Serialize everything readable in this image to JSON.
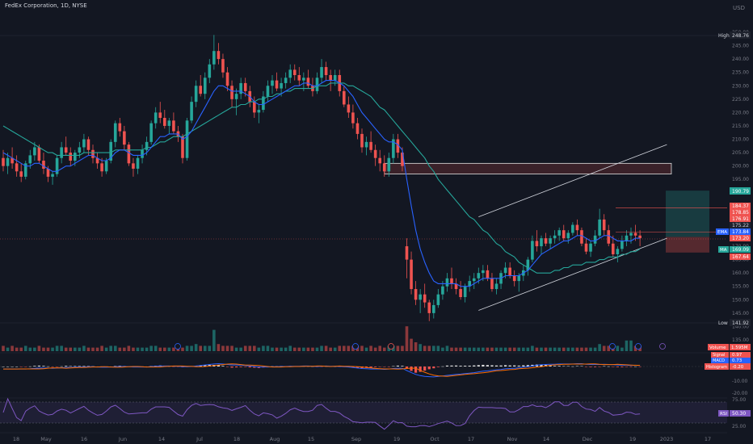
{
  "header": {
    "title": "FedEx Corporation, 1D, NYSE"
  },
  "colors": {
    "bg": "#131722",
    "up": "#26a69a",
    "down": "#ef5350",
    "ema": "#2962ff",
    "ma": "#26a69a",
    "axis": "#787b86",
    "grid": "#1f2330"
  },
  "price_axis": {
    "currency": "USD",
    "ticks": [
      "250.00",
      "245.00",
      "240.00",
      "235.00",
      "230.00",
      "225.00",
      "220.00",
      "215.00",
      "210.00",
      "205.00",
      "200.00",
      "195.00",
      "190.00",
      "185.00",
      "180.00",
      "175.00",
      "170.00",
      "165.00",
      "160.00",
      "155.00",
      "150.00",
      "145.00",
      "140.00",
      "135.00"
    ]
  },
  "time_axis": {
    "labels": [
      "18",
      "May",
      "16",
      "Jun",
      "14",
      "Jul",
      "18",
      "Aug",
      "15",
      "Sep",
      "19",
      "Oct",
      "17",
      "Nov",
      "14",
      "Dec",
      "19",
      "2023",
      "17"
    ]
  },
  "badges": {
    "high": {
      "label": "High",
      "value": "248.76"
    },
    "low": {
      "label": "Low",
      "value": "141.92"
    },
    "target": {
      "value": "190.79"
    },
    "p1": {
      "value": "184.37"
    },
    "p2": {
      "value": "178.85"
    },
    "p3": {
      "value": "176.91"
    },
    "p4": {
      "value": "175.22"
    },
    "ema": {
      "label": "EMA",
      "value": "173.84"
    },
    "last": {
      "value": "173.20"
    },
    "ma": {
      "label": "MA",
      "value": "169.09"
    },
    "stop": {
      "value": "167.64"
    }
  },
  "indicators": {
    "volume": {
      "label": "Volume",
      "value": "1.595M"
    },
    "macd_signal": {
      "label": "Signal",
      "value": "0.97"
    },
    "macd": {
      "label": "MACD",
      "value": "0.73"
    },
    "macd_hist": {
      "label": "Histogram",
      "value": "-0.20"
    },
    "macd_tick_neg10": "-10.00",
    "macd_tick_neg20": "-20.00",
    "rsi": {
      "label": "RSI",
      "value": "50.30"
    },
    "rsi_tick_75": "75.00",
    "rsi_tick_25": "25.00"
  },
  "chart_data": {
    "type": "candlestick",
    "title": "FedEx Corporation, 1D, NYSE",
    "y_range": [
      133,
      253
    ],
    "ohlc": [
      [
        203,
        206,
        198,
        200
      ],
      [
        200,
        205,
        197,
        203
      ],
      [
        203,
        207,
        199,
        201
      ],
      [
        201,
        204,
        196,
        198
      ],
      [
        198,
        201,
        194,
        196
      ],
      [
        196,
        202,
        195,
        201
      ],
      [
        201,
        206,
        199,
        204
      ],
      [
        204,
        209,
        202,
        207
      ],
      [
        207,
        208,
        201,
        202
      ],
      [
        202,
        205,
        197,
        199
      ],
      [
        199,
        200,
        194,
        196
      ],
      [
        196,
        198,
        193,
        197
      ],
      [
        197,
        204,
        196,
        203
      ],
      [
        203,
        209,
        201,
        207
      ],
      [
        207,
        211,
        204,
        205
      ],
      [
        205,
        207,
        200,
        202
      ],
      [
        202,
        206,
        200,
        205
      ],
      [
        205,
        209,
        203,
        207
      ],
      [
        207,
        212,
        205,
        210
      ],
      [
        210,
        211,
        204,
        206
      ],
      [
        206,
        208,
        201,
        203
      ],
      [
        203,
        205,
        199,
        201
      ],
      [
        201,
        203,
        196,
        198
      ],
      [
        198,
        203,
        197,
        202
      ],
      [
        202,
        210,
        201,
        209
      ],
      [
        209,
        217,
        207,
        216
      ],
      [
        216,
        218,
        211,
        213
      ],
      [
        213,
        215,
        206,
        208
      ],
      [
        208,
        209,
        200,
        201
      ],
      [
        201,
        203,
        196,
        199
      ],
      [
        199,
        204,
        197,
        203
      ],
      [
        203,
        208,
        201,
        206
      ],
      [
        206,
        211,
        204,
        209
      ],
      [
        209,
        217,
        208,
        216
      ],
      [
        216,
        222,
        214,
        220
      ],
      [
        220,
        224,
        216,
        218
      ],
      [
        218,
        221,
        214,
        215
      ],
      [
        215,
        218,
        212,
        217
      ],
      [
        217,
        220,
        212,
        213
      ],
      [
        213,
        215,
        209,
        211
      ],
      [
        211,
        212,
        201,
        203
      ],
      [
        203,
        218,
        202,
        217
      ],
      [
        217,
        226,
        216,
        224
      ],
      [
        224,
        232,
        222,
        230
      ],
      [
        230,
        234,
        226,
        227
      ],
      [
        227,
        235,
        225,
        233
      ],
      [
        233,
        240,
        231,
        238
      ],
      [
        238,
        249,
        236,
        243
      ],
      [
        243,
        246,
        238,
        240
      ],
      [
        240,
        242,
        233,
        235
      ],
      [
        235,
        237,
        228,
        230
      ],
      [
        230,
        232,
        222,
        225
      ],
      [
        225,
        229,
        219,
        227
      ],
      [
        227,
        233,
        225,
        231
      ],
      [
        231,
        233,
        226,
        228
      ],
      [
        228,
        230,
        222,
        224
      ],
      [
        224,
        226,
        218,
        220
      ],
      [
        220,
        223,
        216,
        221
      ],
      [
        221,
        228,
        220,
        226
      ],
      [
        226,
        232,
        224,
        230
      ],
      [
        230,
        234,
        227,
        232
      ],
      [
        232,
        235,
        228,
        229
      ],
      [
        229,
        233,
        226,
        231
      ],
      [
        231,
        235,
        229,
        233
      ],
      [
        233,
        238,
        231,
        236
      ],
      [
        236,
        238,
        232,
        234
      ],
      [
        234,
        237,
        230,
        232
      ],
      [
        232,
        235,
        228,
        233
      ],
      [
        233,
        236,
        229,
        230
      ],
      [
        230,
        233,
        226,
        228
      ],
      [
        228,
        235,
        227,
        233
      ],
      [
        233,
        240,
        231,
        237
      ],
      [
        237,
        239,
        232,
        234
      ],
      [
        234,
        236,
        228,
        232
      ],
      [
        232,
        236,
        230,
        234
      ],
      [
        234,
        236,
        226,
        228
      ],
      [
        228,
        230,
        222,
        223
      ],
      [
        223,
        226,
        218,
        220
      ],
      [
        220,
        223,
        214,
        216
      ],
      [
        216,
        218,
        210,
        212
      ],
      [
        212,
        214,
        205,
        207
      ],
      [
        207,
        211,
        204,
        209
      ],
      [
        209,
        213,
        205,
        206
      ],
      [
        206,
        208,
        200,
        203
      ],
      [
        203,
        206,
        198,
        201
      ],
      [
        201,
        204,
        196,
        198
      ],
      [
        198,
        205,
        196,
        203
      ],
      [
        203,
        212,
        201,
        210
      ],
      [
        210,
        212,
        203,
        205
      ],
      [
        205,
        207,
        198,
        200
      ],
      [
        170,
        173,
        158,
        165
      ],
      [
        165,
        168,
        152,
        154
      ],
      [
        154,
        157,
        148,
        150
      ],
      [
        150,
        154,
        145,
        152
      ],
      [
        152,
        156,
        147,
        149
      ],
      [
        149,
        150,
        142,
        145
      ],
      [
        145,
        150,
        143,
        148
      ],
      [
        148,
        154,
        147,
        152
      ],
      [
        152,
        157,
        150,
        155
      ],
      [
        155,
        160,
        153,
        158
      ],
      [
        158,
        162,
        154,
        156
      ],
      [
        156,
        158,
        152,
        154
      ],
      [
        154,
        157,
        150,
        151
      ],
      [
        151,
        156,
        149,
        155
      ],
      [
        155,
        159,
        153,
        157
      ],
      [
        157,
        160,
        154,
        158
      ],
      [
        158,
        162,
        156,
        160
      ],
      [
        160,
        163,
        157,
        161
      ],
      [
        161,
        163,
        157,
        158
      ],
      [
        158,
        160,
        153,
        154
      ],
      [
        154,
        158,
        152,
        156
      ],
      [
        156,
        161,
        154,
        160
      ],
      [
        160,
        164,
        158,
        162
      ],
      [
        162,
        164,
        158,
        159
      ],
      [
        159,
        161,
        155,
        157
      ],
      [
        157,
        160,
        153,
        159
      ],
      [
        159,
        163,
        157,
        161
      ],
      [
        161,
        166,
        159,
        165
      ],
      [
        165,
        174,
        164,
        172
      ],
      [
        172,
        176,
        168,
        170
      ],
      [
        170,
        174,
        167,
        173
      ],
      [
        173,
        175,
        170,
        171
      ],
      [
        171,
        174,
        169,
        173
      ],
      [
        173,
        176,
        171,
        174
      ],
      [
        174,
        177,
        172,
        176
      ],
      [
        176,
        178,
        172,
        173
      ],
      [
        173,
        176,
        171,
        175
      ],
      [
        175,
        179,
        174,
        178
      ],
      [
        178,
        180,
        174,
        176
      ],
      [
        176,
        177,
        170,
        171
      ],
      [
        171,
        173,
        167,
        168
      ],
      [
        168,
        172,
        166,
        171
      ],
      [
        171,
        176,
        170,
        174
      ],
      [
        174,
        184,
        173,
        180
      ],
      [
        180,
        182,
        174,
        176
      ],
      [
        176,
        178,
        170,
        171
      ],
      [
        171,
        174,
        166,
        167
      ],
      [
        167,
        170,
        164,
        169
      ],
      [
        169,
        174,
        168,
        172
      ],
      [
        172,
        176,
        170,
        174
      ],
      [
        174,
        177,
        171,
        175
      ],
      [
        175,
        178,
        172,
        174
      ],
      [
        174,
        176,
        170,
        173
      ]
    ],
    "ema": [
      205,
      204,
      203,
      202,
      201,
      200,
      200,
      201,
      201,
      200,
      199,
      198,
      198,
      199,
      200,
      200,
      201,
      202,
      203,
      204,
      204,
      203,
      202,
      202,
      203,
      205,
      206,
      206,
      205,
      204,
      204,
      204,
      205,
      207,
      209,
      211,
      211,
      212,
      212,
      212,
      210,
      211,
      213,
      216,
      219,
      222,
      225,
      228,
      230,
      230,
      229,
      228,
      228,
      228,
      227,
      226,
      224,
      223,
      223,
      224,
      225,
      226,
      227,
      228,
      229,
      230,
      230,
      231,
      231,
      230,
      230,
      231,
      232,
      232,
      232,
      231,
      230,
      228,
      226,
      223,
      220,
      218,
      216,
      214,
      212,
      210,
      209,
      209,
      208,
      206,
      195,
      185,
      176,
      169,
      164,
      160,
      157,
      156,
      156,
      156,
      156,
      156,
      155,
      155,
      155,
      156,
      157,
      158,
      158,
      158,
      158,
      158,
      159,
      159,
      159,
      159,
      160,
      161,
      163,
      165,
      167,
      168,
      169,
      170,
      171,
      172,
      172,
      173,
      174,
      174,
      173,
      172,
      172,
      173,
      174,
      174,
      173,
      172,
      172,
      172,
      172,
      173,
      173
    ],
    "ma": [
      215,
      214,
      213,
      212,
      211,
      210,
      209,
      208,
      207,
      206,
      205,
      205,
      204,
      204,
      204,
      204,
      204,
      204,
      205,
      205,
      205,
      205,
      205,
      205,
      205,
      206,
      206,
      206,
      206,
      206,
      206,
      206,
      207,
      207,
      208,
      209,
      209,
      210,
      211,
      211,
      211,
      212,
      213,
      214,
      215,
      216,
      217,
      218,
      219,
      220,
      221,
      222,
      222,
      223,
      223,
      224,
      224,
      225,
      225,
      226,
      226,
      227,
      227,
      228,
      228,
      229,
      229,
      229,
      229,
      229,
      230,
      230,
      230,
      231,
      231,
      231,
      231,
      230,
      230,
      229,
      228,
      227,
      226,
      224,
      222,
      221,
      219,
      217,
      215,
      213,
      211,
      209,
      207,
      205,
      203,
      200,
      198,
      195,
      193,
      191,
      189,
      187,
      185,
      183,
      181,
      180,
      178,
      176,
      175,
      173,
      171,
      170,
      168,
      167,
      166,
      164,
      163,
      162,
      161,
      160,
      160,
      160,
      160,
      161,
      161,
      162,
      162,
      163,
      163,
      163,
      164,
      164,
      164,
      165,
      165,
      166,
      166,
      166,
      167,
      167,
      168,
      168,
      169
    ],
    "volume": [
      3,
      2,
      3,
      2,
      2,
      3,
      2,
      2,
      3,
      2,
      2,
      2,
      3,
      3,
      2,
      2,
      2,
      2,
      3,
      2,
      2,
      2,
      3,
      2,
      3,
      3,
      2,
      2,
      3,
      2,
      2,
      2,
      2,
      3,
      3,
      2,
      2,
      2,
      2,
      2,
      2,
      3,
      3,
      4,
      3,
      3,
      3,
      12,
      4,
      3,
      3,
      3,
      2,
      2,
      3,
      3,
      3,
      2,
      3,
      3,
      2,
      2,
      2,
      2,
      3,
      2,
      2,
      2,
      2,
      2,
      2,
      3,
      3,
      2,
      2,
      3,
      3,
      3,
      3,
      3,
      3,
      2,
      3,
      2,
      3,
      2,
      3,
      3,
      3,
      3,
      14,
      7,
      5,
      4,
      3,
      3,
      3,
      3,
      2,
      3,
      2,
      2,
      2,
      2,
      2,
      2,
      2,
      2,
      2,
      2,
      2,
      2,
      2,
      2,
      2,
      2,
      2,
      2,
      3,
      2,
      2,
      2,
      2,
      2,
      2,
      2,
      2,
      2,
      2,
      2,
      2,
      2,
      2,
      4,
      3,
      3,
      3,
      3,
      2,
      6,
      6,
      3,
      3
    ],
    "channel": {
      "upper": [
        [
          106,
          181
        ],
        [
          148,
          208
        ]
      ],
      "lower": [
        [
          106,
          146
        ],
        [
          148,
          173
        ]
      ]
    },
    "zone": {
      "from_index": 85,
      "to_index": 149,
      "low": 197,
      "high": 201
    },
    "rsi_band": [
      25,
      75
    ]
  }
}
